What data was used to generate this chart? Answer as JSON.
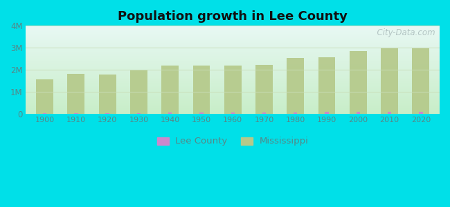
{
  "title": "Population growth in Lee County",
  "years": [
    1900,
    1910,
    1920,
    1930,
    1940,
    1950,
    1960,
    1970,
    1980,
    1990,
    2000,
    2010,
    2020
  ],
  "mississippi": [
    1551270,
    1797114,
    1790618,
    2009821,
    2183796,
    2178914,
    2178141,
    2216912,
    2520638,
    2573216,
    2844658,
    2967297,
    2961279
  ],
  "lee_county": [
    20000,
    24000,
    24000,
    30000,
    40000,
    44000,
    47000,
    52000,
    65000,
    71000,
    75755,
    82910,
    85436
  ],
  "ms_color": "#b5c98a",
  "lc_color": "#cc88cc",
  "outer_bg": "#00e0e8",
  "ylim": [
    0,
    4000000
  ],
  "yticks": [
    0,
    1000000,
    2000000,
    3000000,
    4000000
  ],
  "ytick_labels": [
    "0",
    "1M",
    "2M",
    "3M",
    "4M"
  ],
  "watermark": "  City-Data.com",
  "bar_width": 0.55,
  "lc_bar_width": 0.12,
  "legend_lc": "Lee County",
  "legend_ms": "Mississippi",
  "grid_color": "#ddeecc",
  "tick_color": "#558888",
  "title_color": "#111111"
}
